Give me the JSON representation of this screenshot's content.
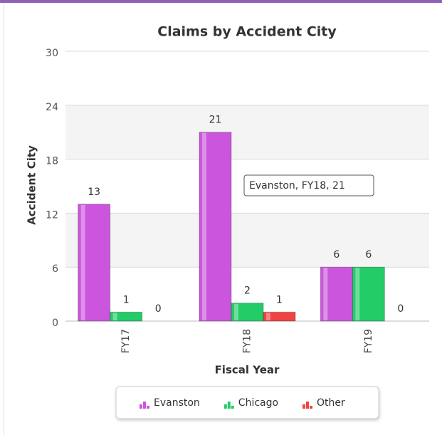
{
  "chart_data": {
    "type": "bar",
    "title": "Claims by Accident City",
    "x_label": "Fiscal Year",
    "y_label": "Accident City",
    "categories": [
      "FY17",
      "FY18",
      "FY19"
    ],
    "series": [
      {
        "name": "Evanston",
        "color": "#cc55dd",
        "values": [
          13,
          21,
          6
        ]
      },
      {
        "name": "Chicago",
        "color": "#22cc66",
        "values": [
          1,
          2,
          6
        ]
      },
      {
        "name": "Other",
        "color": "#ee4444",
        "values": [
          0,
          1,
          0
        ]
      }
    ],
    "ylim": [
      0,
      30
    ],
    "yticks": [
      0,
      6,
      12,
      18,
      24,
      30
    ],
    "grid": true,
    "legend": "bottom",
    "tooltip": "Evanston, FY18, 21"
  }
}
